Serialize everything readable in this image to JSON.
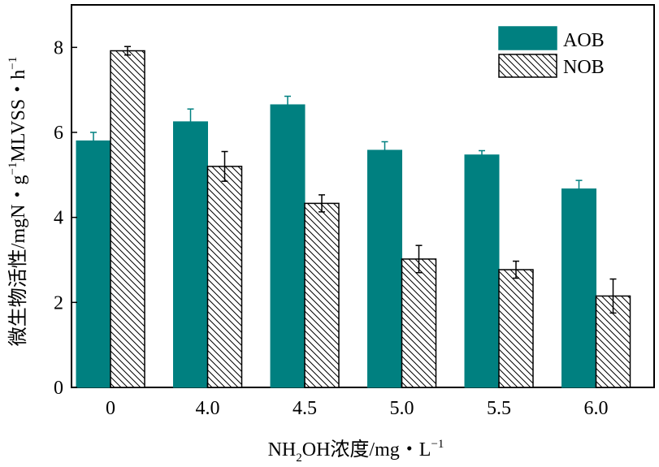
{
  "chart_data": {
    "type": "bar",
    "title": "",
    "categories": [
      "0",
      "4.0",
      "4.5",
      "5.0",
      "5.5",
      "6.0"
    ],
    "series": [
      {
        "name": "AOB",
        "values": [
          5.8,
          6.25,
          6.65,
          5.58,
          5.47,
          4.67
        ],
        "errors": [
          0.2,
          0.3,
          0.2,
          0.2,
          0.1,
          0.2
        ],
        "color": "#008080",
        "pattern": "solid"
      },
      {
        "name": "NOB",
        "values": [
          7.92,
          5.2,
          4.33,
          3.02,
          2.77,
          2.15
        ],
        "errors": [
          0.1,
          0.35,
          0.2,
          0.32,
          0.2,
          0.4
        ],
        "color": "#ffffff",
        "pattern": "hatched"
      }
    ],
    "ylim": [
      0,
      9
    ],
    "yticks": [
      0,
      2,
      4,
      6,
      8
    ],
    "ytick_labels": [
      "0",
      "2",
      "4",
      "6",
      "8"
    ],
    "ylabel": {
      "main": "微生物活性/mgN・g",
      "sup1": "−1",
      "mid": "MLVSS・h",
      "sup2": "−1"
    },
    "xlabel": {
      "part1": "NH",
      "sub": "2",
      "part2": "OH浓度/mg・L",
      "sup": "−1"
    },
    "legend": {
      "position": "top-right",
      "entries": [
        "AOB",
        "NOB"
      ]
    },
    "grid": false
  }
}
